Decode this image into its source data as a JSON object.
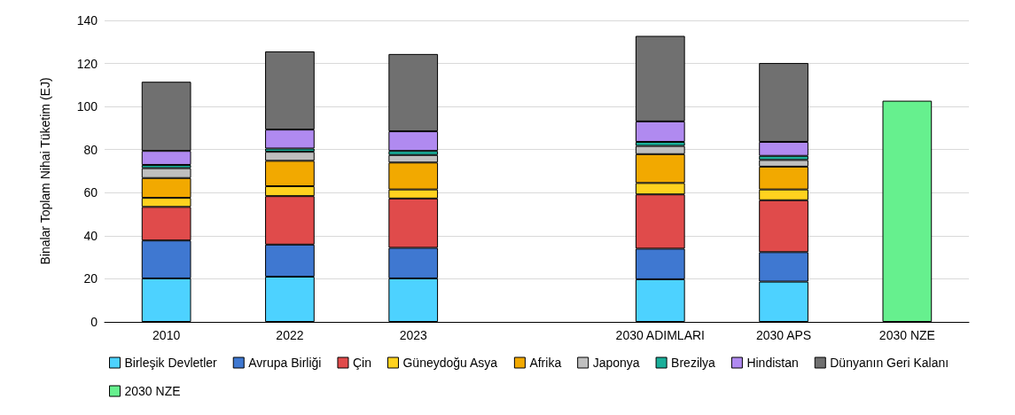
{
  "chart_data": {
    "type": "bar",
    "stacked": true,
    "ylabel": "Binalar Toplam Nihai Tüketim (EJ)",
    "categories": [
      "2010",
      "2022",
      "2023",
      null,
      "2030 ADIMLARI",
      "2030 APS",
      "2030 NZE"
    ],
    "ylim": [
      0,
      140
    ],
    "yticks": [
      0,
      20,
      40,
      60,
      80,
      100,
      120,
      140
    ],
    "grid": "y",
    "legend": "bottom",
    "series": [
      {
        "name": "Birleşik Devletler",
        "color": "#4dd2ff",
        "values": [
          20.2,
          21,
          20.2,
          null,
          19.8,
          18.7,
          null
        ]
      },
      {
        "name": "Avrupa Birliği",
        "color": "#3f78d1",
        "values": [
          17.6,
          14.9,
          14.2,
          null,
          14.2,
          13.7,
          null
        ]
      },
      {
        "name": "Çin",
        "color": "#e04b4b",
        "values": [
          15.6,
          22.5,
          22.9,
          null,
          25.2,
          24.1,
          null
        ]
      },
      {
        "name": "Güneydoğu Asya",
        "color": "#ffd21f",
        "values": [
          4.2,
          4.6,
          4.2,
          null,
          5.3,
          5,
          null
        ]
      },
      {
        "name": "Afrika",
        "color": "#f2a900",
        "values": [
          9.2,
          11.8,
          12.5,
          null,
          13.4,
          10.6,
          null
        ]
      },
      {
        "name": "Japonya",
        "color": "#bfbfbf",
        "values": [
          4.6,
          4.2,
          3.5,
          null,
          3.8,
          3.1,
          null
        ]
      },
      {
        "name": "Brezilya",
        "color": "#1aaf9a",
        "values": [
          1.5,
          1.5,
          1.9,
          null,
          1.9,
          1.9,
          null
        ]
      },
      {
        "name": "Hindistan",
        "color": "#b08af0",
        "values": [
          6.5,
          8.8,
          9.1,
          null,
          9.5,
          6.5,
          null
        ]
      },
      {
        "name": "Dünyanın Geri Kalanı",
        "color": "#707070",
        "values": [
          32.1,
          36.3,
          35.9,
          null,
          39.7,
          36.6,
          null
        ]
      },
      {
        "name": "2030 NZE",
        "color": "#66f08e",
        "values": [
          null,
          null,
          null,
          null,
          null,
          null,
          102.7
        ]
      }
    ]
  }
}
